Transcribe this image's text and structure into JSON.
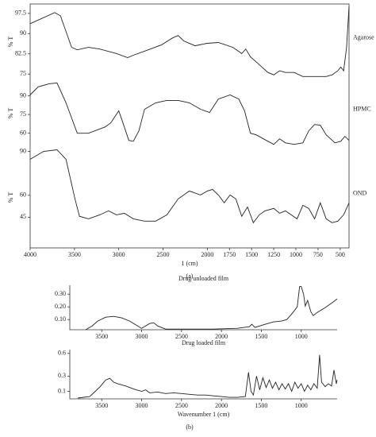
{
  "chart_data": [
    {
      "type": "line",
      "name": "Agarose",
      "ylabel": "% T",
      "color": "#222",
      "xlim": [
        4000,
        400
      ],
      "ylim": [
        73,
        101
      ],
      "yticks": [
        97.5,
        90,
        82.5,
        75
      ],
      "x": [
        4000,
        3722,
        3658,
        3532,
        3468,
        3342,
        3215,
        3025,
        2899,
        2835,
        2709,
        2519,
        2392,
        2329,
        2266,
        2139,
        2000,
        1875,
        1711,
        1612,
        1566,
        1513,
        1414,
        1316,
        1250,
        1184,
        1118,
        1020,
        921,
        789,
        658,
        592,
        526,
        493,
        461,
        428,
        400
      ],
      "values": [
        93.7,
        97.8,
        96.6,
        84.9,
        84.0,
        84.9,
        84.3,
        82.6,
        81.1,
        82.0,
        83.5,
        85.8,
        88.4,
        89.3,
        87.3,
        85.5,
        86.4,
        86.7,
        84.9,
        82.6,
        84.3,
        81.4,
        78.5,
        75.6,
        74.7,
        76.2,
        75.6,
        75.6,
        74.1,
        74.1,
        74.1,
        74.7,
        76.2,
        77.6,
        76.2,
        84.9,
        100.1
      ]
    },
    {
      "type": "line",
      "name": "HPMC",
      "ylabel": "% T",
      "color": "#222",
      "xlim": [
        4000,
        400
      ],
      "ylim": [
        49,
        103
      ],
      "yticks": [
        90,
        75,
        60
      ],
      "x": [
        4000,
        3911,
        3785,
        3696,
        3595,
        3468,
        3342,
        3152,
        3089,
        3000,
        2937,
        2886,
        2835,
        2772,
        2709,
        2582,
        2456,
        2329,
        2203,
        2076,
        1974,
        1875,
        1743,
        1645,
        1579,
        1513,
        1447,
        1316,
        1250,
        1184,
        1118,
        1020,
        921,
        855,
        789,
        724,
        658,
        559,
        493,
        447,
        400
      ],
      "values": [
        90.6,
        97.0,
        99.6,
        100.2,
        84.3,
        60.0,
        60.0,
        65.1,
        68.3,
        77.9,
        65.1,
        54.3,
        53.6,
        61.9,
        79.2,
        84.3,
        86.2,
        86.2,
        84.3,
        79.2,
        76.6,
        87.4,
        90.6,
        87.4,
        77.9,
        60.0,
        58.7,
        53.6,
        51.1,
        55.5,
        52.3,
        51.1,
        52.3,
        61.9,
        67.0,
        66.4,
        58.7,
        52.3,
        53.6,
        57.5,
        54.3
      ]
    },
    {
      "type": "line",
      "name": "OND",
      "ylabel": "% T",
      "color": "#222",
      "xlim": [
        4000,
        400
      ],
      "ylim": [
        24,
        93
      ],
      "yticks": [
        90,
        60,
        45
      ],
      "xticks": [
        4000,
        3500,
        3000,
        2500,
        2000,
        1750,
        1500,
        1250,
        1000,
        750,
        500
      ],
      "xlabel": "1 (cm)",
      "caption": "(a)",
      "x": [
        4000,
        3848,
        3696,
        3595,
        3494,
        3443,
        3342,
        3215,
        3114,
        3025,
        2937,
        2835,
        2709,
        2582,
        2456,
        2329,
        2203,
        2076,
        2000,
        1941,
        1875,
        1809,
        1743,
        1678,
        1612,
        1546,
        1480,
        1414,
        1349,
        1250,
        1184,
        1118,
        1053,
        987,
        921,
        855,
        789,
        724,
        658,
        592,
        526,
        461,
        400
      ],
      "values": [
        84.6,
        90.0,
        91.1,
        84.6,
        57.5,
        45.6,
        43.9,
        46.6,
        49.3,
        46.6,
        47.7,
        43.9,
        42.3,
        42.3,
        46.6,
        57.5,
        62.9,
        60.2,
        62.9,
        64.0,
        60.2,
        54.8,
        60.2,
        57.5,
        45.6,
        52.0,
        41.2,
        46.6,
        49.3,
        51.0,
        47.7,
        49.3,
        46.6,
        43.9,
        53.1,
        51.0,
        43.9,
        54.8,
        43.9,
        41.2,
        42.3,
        46.6,
        54.8
      ]
    },
    {
      "type": "line",
      "title": "Drug unloaded film",
      "color": "#222",
      "xlim": [
        3900,
        550
      ],
      "ylim": [
        0.02,
        0.37
      ],
      "yticks": [
        {
          "value": 0.3,
          "label": "0.30"
        },
        {
          "value": 0.2,
          "label": "0.20"
        },
        {
          "value": 0.1,
          "label": "0.10"
        }
      ],
      "xticks": [
        3500,
        3000,
        2500,
        2000,
        1500,
        1000
      ],
      "x": [
        3700,
        3620,
        3550,
        3450,
        3350,
        3250,
        3150,
        3050,
        3000,
        2900,
        2850,
        2800,
        2700,
        2400,
        2100,
        1800,
        1650,
        1620,
        1580,
        1450,
        1350,
        1250,
        1180,
        1120,
        1080,
        1050,
        1020,
        1000,
        970,
        950,
        920,
        880,
        850,
        800,
        700,
        600,
        550
      ],
      "values": [
        0.02,
        0.05,
        0.088,
        0.119,
        0.125,
        0.113,
        0.088,
        0.05,
        0.031,
        0.069,
        0.075,
        0.05,
        0.025,
        0.025,
        0.025,
        0.031,
        0.044,
        0.063,
        0.038,
        0.063,
        0.081,
        0.088,
        0.1,
        0.144,
        0.175,
        0.2,
        0.36,
        0.36,
        0.3,
        0.206,
        0.25,
        0.163,
        0.131,
        0.156,
        0.194,
        0.238,
        0.263
      ]
    },
    {
      "type": "line",
      "title": "Drug loaded film",
      "color": "#222",
      "xlim": [
        3900,
        550
      ],
      "ylim": [
        0,
        0.65
      ],
      "yticks": [
        0.6,
        0.3,
        0.1
      ],
      "xticks": [
        3500,
        3000,
        2500,
        2000,
        1500,
        1000
      ],
      "xlabel": "Wavenumber 1 (cm)",
      "caption": "(b)",
      "x": [
        3800,
        3650,
        3580,
        3520,
        3450,
        3400,
        3350,
        3300,
        3200,
        3100,
        3000,
        2950,
        2900,
        2800,
        2700,
        2600,
        2500,
        2400,
        2300,
        2200,
        2100,
        2000,
        1900,
        1800,
        1700,
        1660,
        1630,
        1600,
        1560,
        1520,
        1480,
        1440,
        1400,
        1360,
        1320,
        1280,
        1240,
        1200,
        1160,
        1120,
        1080,
        1040,
        1000,
        960,
        920,
        880,
        840,
        800,
        770,
        745,
        700,
        660,
        620,
        590,
        560,
        550
      ],
      "values": [
        0.01,
        0.03,
        0.1,
        0.16,
        0.25,
        0.27,
        0.22,
        0.2,
        0.17,
        0.13,
        0.1,
        0.12,
        0.08,
        0.09,
        0.07,
        0.08,
        0.07,
        0.06,
        0.05,
        0.05,
        0.04,
        0.03,
        0.02,
        0.02,
        0.03,
        0.35,
        0.1,
        0.05,
        0.3,
        0.12,
        0.28,
        0.15,
        0.25,
        0.14,
        0.22,
        0.12,
        0.2,
        0.13,
        0.2,
        0.1,
        0.22,
        0.14,
        0.2,
        0.1,
        0.18,
        0.12,
        0.2,
        0.14,
        0.58,
        0.22,
        0.16,
        0.2,
        0.17,
        0.38,
        0.2,
        0.25
      ]
    }
  ]
}
